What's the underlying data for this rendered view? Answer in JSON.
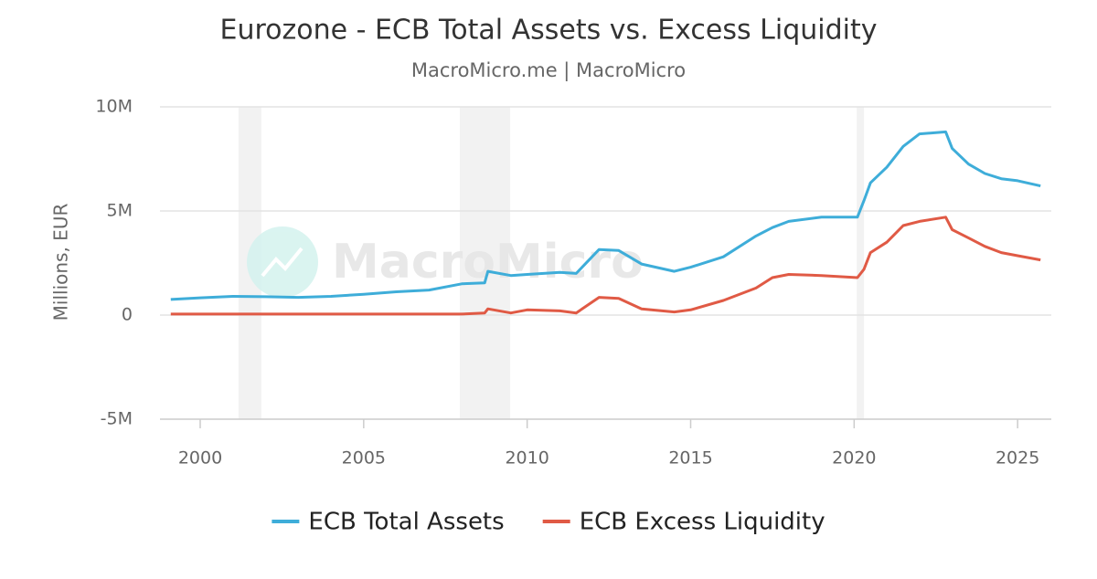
{
  "chart_data": {
    "type": "line",
    "title": "Eurozone - ECB Total Assets vs. Excess Liquidity",
    "subtitle": "MacroMicro.me | MacroMicro",
    "watermark": "MacroMicro",
    "y_axis_label": "Millions, EUR",
    "x": [
      1999.1,
      2000,
      2001,
      2002,
      2003,
      2004,
      2005,
      2006,
      2007,
      2008,
      2008.7,
      2008.8,
      2009.5,
      2010,
      2011,
      2011.5,
      2012.2,
      2012.8,
      2013.5,
      2014.5,
      2015,
      2016,
      2017,
      2017.5,
      2018,
      2019,
      2020.1,
      2020.3,
      2020.5,
      2021,
      2021.5,
      2022,
      2022.8,
      2023,
      2023.5,
      2024,
      2024.5,
      2025,
      2025.7
    ],
    "series": [
      {
        "name": "ECB Total Assets",
        "color": "#3eadd9",
        "values": [
          750000,
          830000,
          900000,
          880000,
          850000,
          900000,
          1000000,
          1120000,
          1200000,
          1500000,
          1550000,
          2100000,
          1900000,
          1950000,
          2050000,
          2000000,
          3150000,
          3100000,
          2450000,
          2100000,
          2300000,
          2800000,
          3800000,
          4200000,
          4500000,
          4700000,
          4700000,
          5500000,
          6350000,
          7100000,
          8100000,
          8700000,
          8800000,
          8000000,
          7250000,
          6800000,
          6550000,
          6450000,
          6200000
        ]
      },
      {
        "name": "ECB Excess Liquidity",
        "color": "#e05a45",
        "values": [
          50000,
          50000,
          50000,
          50000,
          50000,
          50000,
          50000,
          50000,
          50000,
          50000,
          100000,
          300000,
          100000,
          250000,
          200000,
          100000,
          850000,
          800000,
          300000,
          150000,
          250000,
          700000,
          1300000,
          1800000,
          1950000,
          1900000,
          1800000,
          2200000,
          3000000,
          3500000,
          4300000,
          4500000,
          4700000,
          4100000,
          3700000,
          3300000,
          3000000,
          2850000,
          2650000
        ]
      }
    ],
    "shaded_ranges": [
      [
        2001.17,
        2001.87
      ],
      [
        2007.94,
        2009.48
      ],
      [
        2020.08,
        2020.3
      ]
    ],
    "xlim": [
      1998.77,
      2026.03
    ],
    "xticks": [
      2000,
      2005,
      2010,
      2015,
      2020,
      2025
    ],
    "ylim": [
      -5000000,
      10000000
    ],
    "yticks": [
      {
        "value": -5000000,
        "label": "-5M"
      },
      0,
      {
        "value": 5000000,
        "label": "5M"
      },
      {
        "value": 10000000,
        "label": "10M"
      }
    ],
    "grid": true,
    "legend": "bottom"
  }
}
